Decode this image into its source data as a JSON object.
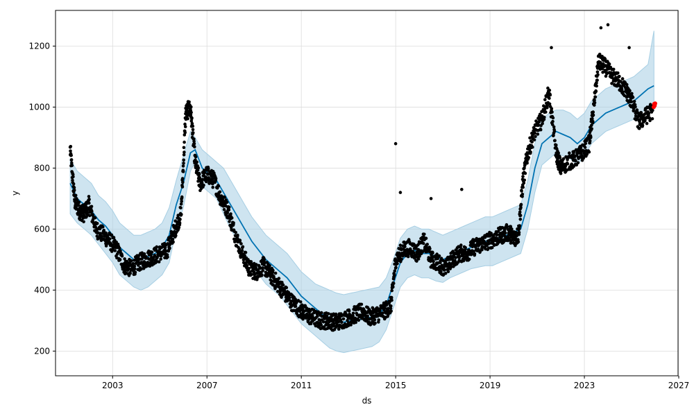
{
  "chart_data": {
    "type": "line",
    "title": "",
    "xlabel": "ds",
    "ylabel": "y",
    "xlim": [
      2000.58,
      2026.97
    ],
    "ylim": [
      119,
      1317
    ],
    "x_ticks": [
      2003,
      2007,
      2011,
      2015,
      2019,
      2023,
      2027
    ],
    "y_ticks": [
      200,
      400,
      600,
      800,
      1000,
      1200
    ],
    "grid": true,
    "legend": "none",
    "colors": {
      "forecast_line": "#0072B2",
      "uncertainty_band": "#a6cee3",
      "observed_points": "#000000",
      "highlight_points": "#ff0000",
      "grid": "#dcdcdc"
    },
    "series": [
      {
        "kind": "forecast",
        "x": [
          2001.2,
          2001.5,
          2001.8,
          2002.1,
          2002.4,
          2002.7,
          2003.0,
          2003.3,
          2003.6,
          2003.9,
          2004.2,
          2004.5,
          2004.8,
          2005.1,
          2005.4,
          2005.7,
          2006.0,
          2006.3,
          2006.5,
          2006.8,
          2007.1,
          2007.4,
          2007.7,
          2008.0,
          2008.3,
          2008.6,
          2008.9,
          2009.2,
          2009.5,
          2009.8,
          2010.1,
          2010.4,
          2010.7,
          2011.0,
          2011.3,
          2011.6,
          2011.9,
          2012.2,
          2012.5,
          2012.8,
          2013.1,
          2013.4,
          2013.7,
          2014.0,
          2014.3,
          2014.6,
          2014.9,
          2015.2,
          2015.5,
          2015.8,
          2016.1,
          2016.4,
          2016.7,
          2017.0,
          2017.3,
          2017.6,
          2017.9,
          2018.2,
          2018.5,
          2018.8,
          2019.1,
          2019.4,
          2019.7,
          2020.0,
          2020.3,
          2020.6,
          2020.9,
          2021.2,
          2021.5,
          2021.8,
          2022.1,
          2022.4,
          2022.7,
          2023.0,
          2023.3,
          2023.6,
          2023.9,
          2024.2,
          2024.5,
          2024.8,
          2025.1,
          2025.4,
          2025.7,
          2025.95
        ],
        "yhat": [
          750,
          700,
          680,
          660,
          630,
          610,
          580,
          540,
          520,
          500,
          500,
          510,
          520,
          540,
          580,
          680,
          750,
          850,
          860,
          800,
          780,
          760,
          720,
          680,
          640,
          600,
          560,
          530,
          500,
          480,
          460,
          440,
          410,
          380,
          360,
          340,
          320,
          310,
          300,
          295,
          300,
          300,
          310,
          310,
          320,
          350,
          420,
          490,
          520,
          530,
          520,
          520,
          510,
          500,
          510,
          520,
          530,
          540,
          550,
          560,
          560,
          570,
          580,
          590,
          600,
          680,
          800,
          880,
          900,
          920,
          910,
          900,
          880,
          900,
          940,
          960,
          980,
          990,
          1000,
          1010,
          1020,
          1040,
          1060,
          1070
        ],
        "yhat_lower": [
          650,
          620,
          600,
          580,
          550,
          520,
          490,
          450,
          430,
          410,
          400,
          410,
          430,
          450,
          490,
          600,
          670,
          790,
          820,
          740,
          720,
          700,
          650,
          600,
          560,
          520,
          480,
          450,
          420,
          400,
          380,
          350,
          320,
          290,
          270,
          250,
          230,
          210,
          200,
          195,
          200,
          205,
          210,
          215,
          230,
          270,
          340,
          410,
          440,
          450,
          440,
          440,
          430,
          425,
          440,
          450,
          460,
          470,
          475,
          480,
          480,
          490,
          500,
          510,
          520,
          600,
          720,
          810,
          830,
          850,
          840,
          830,
          810,
          840,
          880,
          900,
          920,
          930,
          940,
          950,
          960,
          980,
          1000,
          990
        ],
        "yhat_upper": [
          830,
          790,
          770,
          750,
          710,
          690,
          660,
          620,
          600,
          580,
          580,
          590,
          600,
          620,
          670,
          760,
          840,
          920,
          900,
          860,
          840,
          820,
          800,
          760,
          720,
          680,
          640,
          610,
          580,
          560,
          540,
          520,
          490,
          460,
          440,
          420,
          410,
          400,
          390,
          385,
          390,
          395,
          400,
          405,
          410,
          440,
          500,
          570,
          600,
          610,
          600,
          600,
          590,
          580,
          590,
          600,
          610,
          620,
          630,
          640,
          640,
          650,
          660,
          670,
          680,
          760,
          880,
          960,
          980,
          990,
          990,
          980,
          960,
          980,
          1020,
          1040,
          1060,
          1070,
          1080,
          1090,
          1100,
          1120,
          1140,
          1250
        ]
      },
      {
        "kind": "observed",
        "anchors_x": [
          2001.2,
          2001.4,
          2001.6,
          2001.8,
          2002.0,
          2002.3,
          2002.6,
          2002.9,
          2003.2,
          2003.5,
          2003.8,
          2004.1,
          2004.4,
          2004.7,
          2005.0,
          2005.3,
          2005.6,
          2005.9,
          2006.1,
          2006.3,
          2006.5,
          2006.7,
          2007.0,
          2007.3,
          2007.6,
          2007.9,
          2008.2,
          2008.5,
          2008.8,
          2009.1,
          2009.4,
          2009.7,
          2010.0,
          2010.3,
          2010.6,
          2010.9,
          2011.2,
          2011.5,
          2011.8,
          2012.1,
          2012.4,
          2012.7,
          2013.0,
          2013.3,
          2013.6,
          2013.9,
          2014.2,
          2014.5,
          2014.8,
          2015.0,
          2015.3,
          2015.6,
          2015.9,
          2016.2,
          2016.5,
          2016.8,
          2017.1,
          2017.4,
          2017.7,
          2018.0,
          2018.3,
          2018.6,
          2018.9,
          2019.2,
          2019.5,
          2019.8,
          2020.0,
          2020.2,
          2020.4,
          2020.6,
          2020.9,
          2021.2,
          2021.5,
          2021.8,
          2022.0,
          2022.3,
          2022.6,
          2022.9,
          2023.2,
          2023.4,
          2023.6,
          2023.9,
          2024.2,
          2024.5,
          2024.8,
          2025.0,
          2025.3,
          2025.6,
          2025.9
        ],
        "anchors_y": [
          860,
          690,
          660,
          650,
          680,
          600,
          580,
          560,
          530,
          480,
          470,
          490,
          500,
          510,
          520,
          530,
          590,
          650,
          980,
          1000,
          820,
          750,
          780,
          760,
          700,
          660,
          580,
          520,
          470,
          460,
          480,
          450,
          420,
          390,
          360,
          340,
          320,
          310,
          300,
          300,
          295,
          300,
          310,
          320,
          330,
          310,
          320,
          330,
          350,
          500,
          530,
          540,
          520,
          560,
          500,
          490,
          470,
          500,
          520,
          520,
          540,
          550,
          560,
          570,
          580,
          590,
          570,
          580,
          760,
          850,
          920,
          960,
          1050,
          850,
          800,
          820,
          830,
          850,
          880,
          1000,
          1150,
          1130,
          1100,
          1080,
          1050,
          1020,
          950,
          970,
          990
        ],
        "noise": 28,
        "spikes": [
          {
            "x": 2015.0,
            "y": 880
          },
          {
            "x": 2015.2,
            "y": 720
          },
          {
            "x": 2016.5,
            "y": 700
          },
          {
            "x": 2017.8,
            "y": 730
          },
          {
            "x": 2021.6,
            "y": 1195
          },
          {
            "x": 2023.7,
            "y": 1260
          },
          {
            "x": 2024.0,
            "y": 1270
          },
          {
            "x": 2024.9,
            "y": 1195
          }
        ]
      },
      {
        "kind": "highlight",
        "x": [
          2025.94,
          2025.96,
          2025.98,
          2026.0
        ],
        "y": [
          1000,
          1010,
          1005,
          1012
        ]
      }
    ]
  }
}
